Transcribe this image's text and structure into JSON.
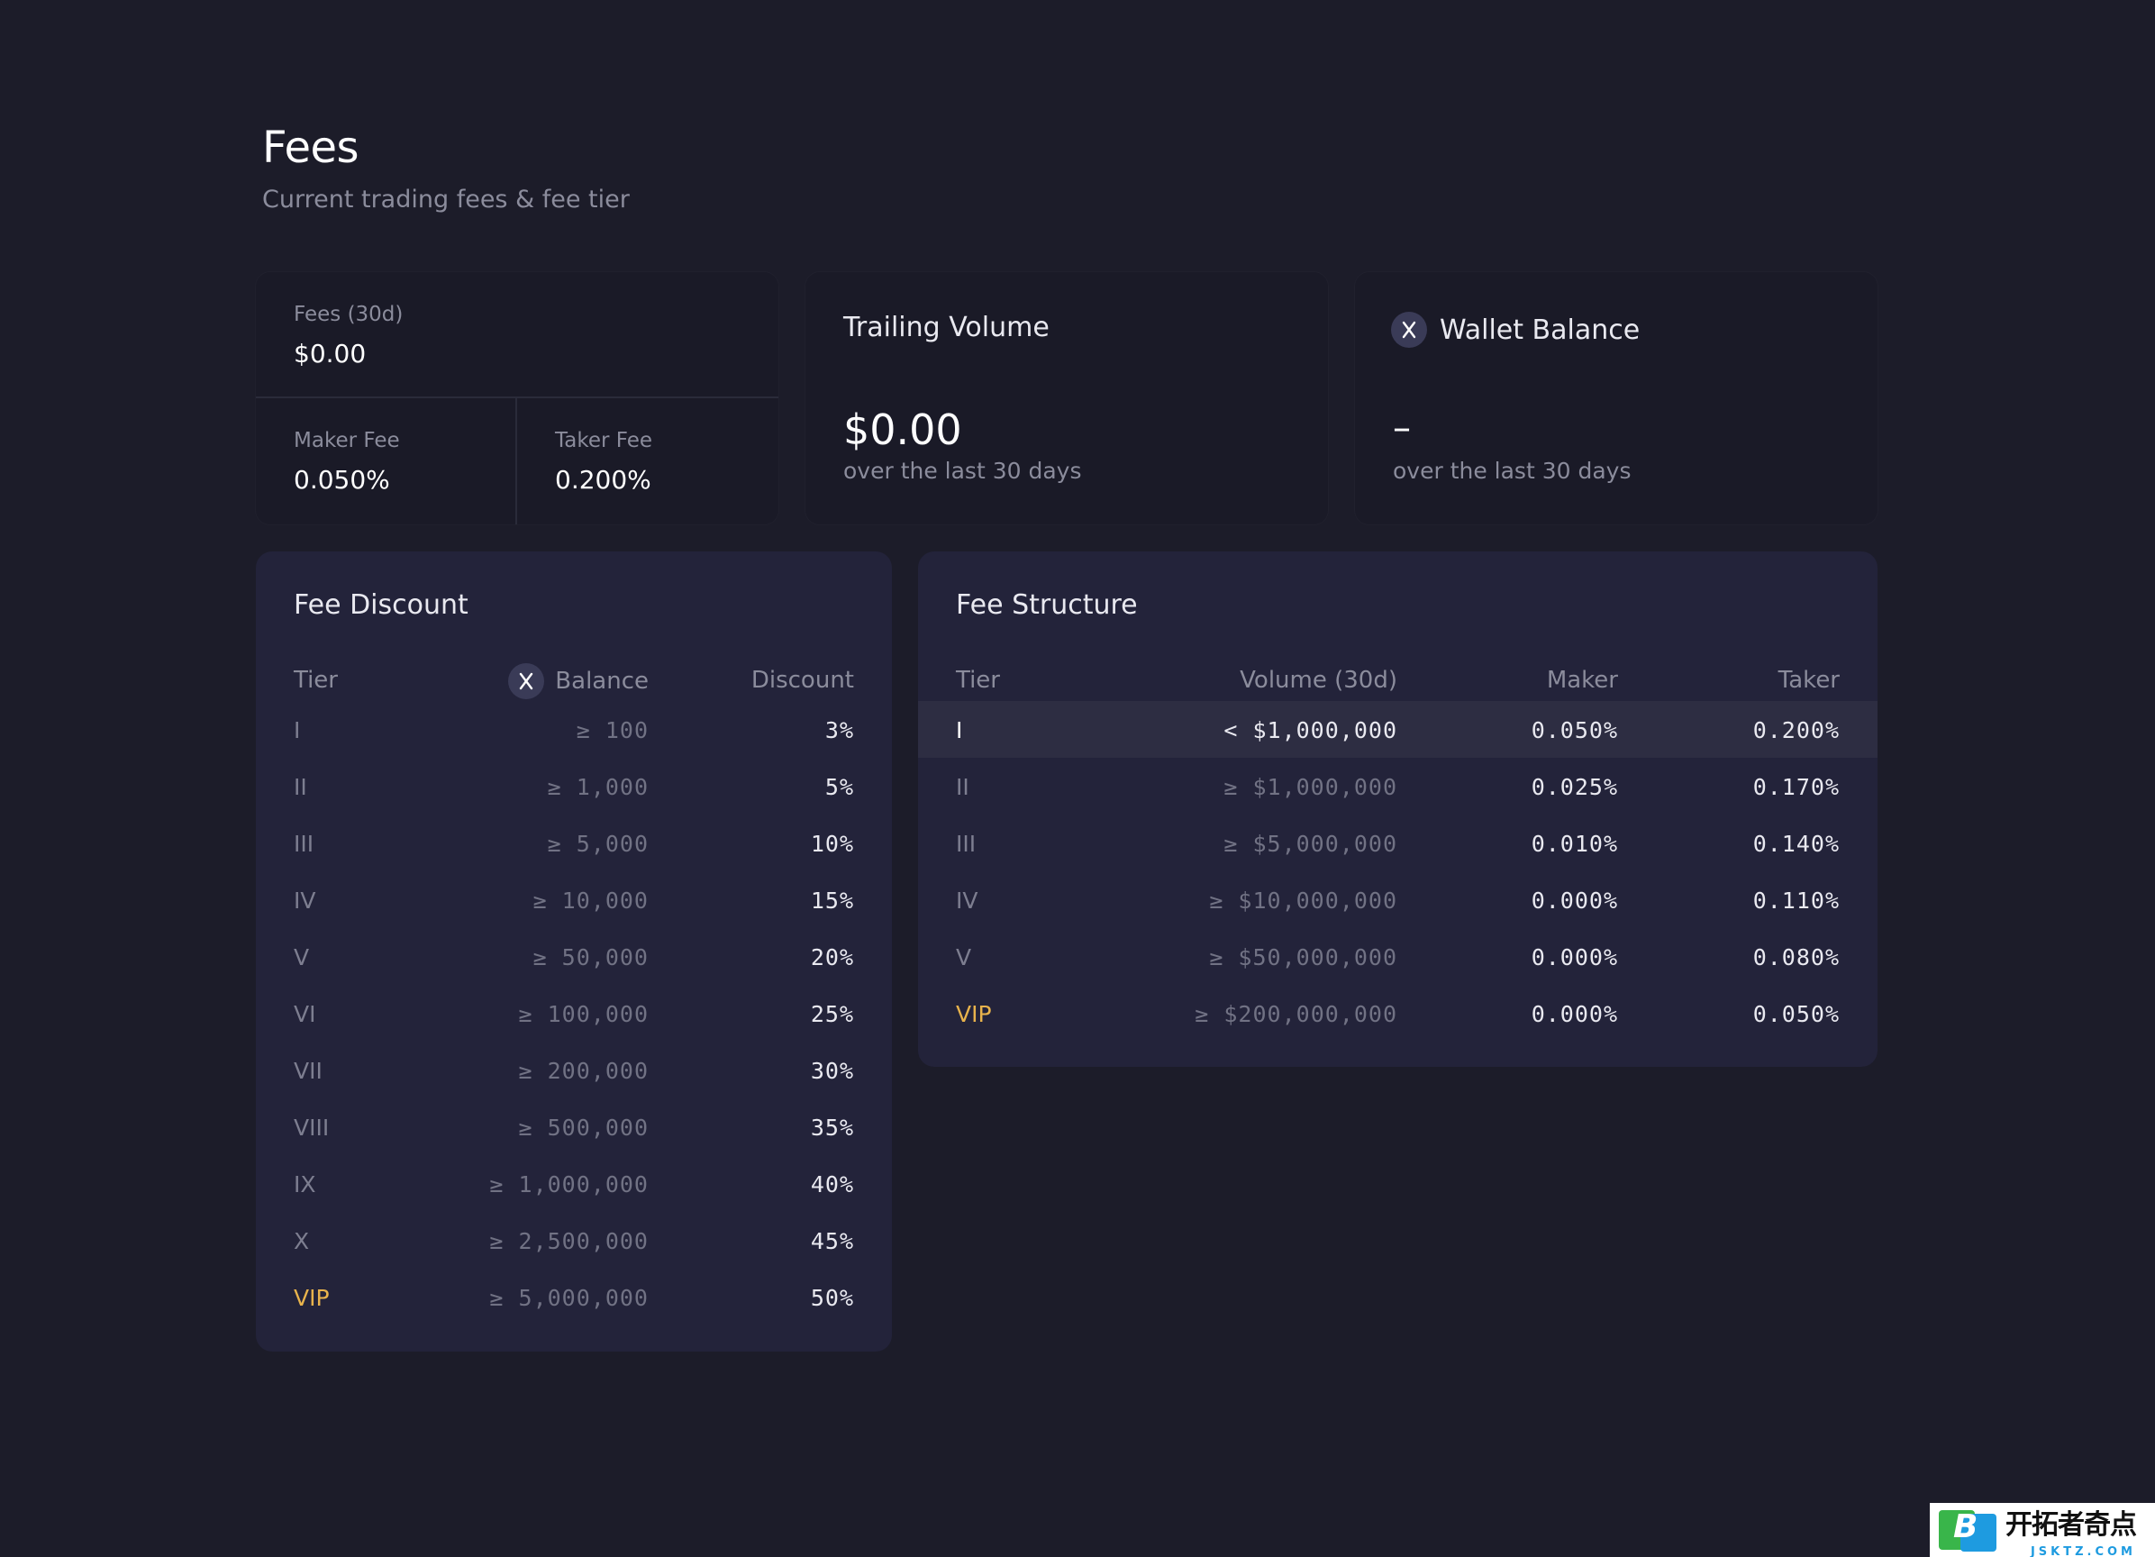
{
  "header": {
    "title": "Fees",
    "subtitle": "Current trading fees & fee tier"
  },
  "fees_card": {
    "fees_label": "Fees (30d)",
    "fees_value": "$0.00",
    "maker_label": "Maker Fee",
    "maker_value": "0.050%",
    "taker_label": "Taker Fee",
    "taker_value": "0.200%"
  },
  "volume_card": {
    "title": "Trailing Volume",
    "value": "$0.00",
    "subtitle": "over the last 30 days"
  },
  "wallet_card": {
    "title": "Wallet Balance",
    "token_icon": "x-token-icon",
    "value": "–",
    "subtitle": "over the last 30 days"
  },
  "fee_discount": {
    "title": "Fee Discount",
    "columns": {
      "tier": "Tier",
      "balance": "Balance",
      "discount": "Discount"
    },
    "rows": [
      {
        "tier": "I",
        "balance": "≥ 100",
        "discount": "3%"
      },
      {
        "tier": "II",
        "balance": "≥ 1,000",
        "discount": "5%"
      },
      {
        "tier": "III",
        "balance": "≥ 5,000",
        "discount": "10%"
      },
      {
        "tier": "IV",
        "balance": "≥ 10,000",
        "discount": "15%"
      },
      {
        "tier": "V",
        "balance": "≥ 50,000",
        "discount": "20%"
      },
      {
        "tier": "VI",
        "balance": "≥ 100,000",
        "discount": "25%"
      },
      {
        "tier": "VII",
        "balance": "≥ 200,000",
        "discount": "30%"
      },
      {
        "tier": "VIII",
        "balance": "≥ 500,000",
        "discount": "35%"
      },
      {
        "tier": "IX",
        "balance": "≥ 1,000,000",
        "discount": "40%"
      },
      {
        "tier": "X",
        "balance": "≥ 2,500,000",
        "discount": "45%"
      },
      {
        "tier": "VIP",
        "balance": "≥ 5,000,000",
        "discount": "50%"
      }
    ]
  },
  "fee_structure": {
    "title": "Fee Structure",
    "columns": {
      "tier": "Tier",
      "volume": "Volume (30d)",
      "maker": "Maker",
      "taker": "Taker"
    },
    "rows": [
      {
        "tier": "I",
        "volume": "< $1,000,000",
        "maker": "0.050%",
        "taker": "0.200%"
      },
      {
        "tier": "II",
        "volume": "≥ $1,000,000",
        "maker": "0.025%",
        "taker": "0.170%"
      },
      {
        "tier": "III",
        "volume": "≥ $5,000,000",
        "maker": "0.010%",
        "taker": "0.140%"
      },
      {
        "tier": "IV",
        "volume": "≥ $10,000,000",
        "maker": "0.000%",
        "taker": "0.110%"
      },
      {
        "tier": "V",
        "volume": "≥ $50,000,000",
        "maker": "0.000%",
        "taker": "0.080%"
      },
      {
        "tier": "VIP",
        "volume": "≥ $200,000,000",
        "maker": "0.000%",
        "taker": "0.050%"
      }
    ]
  },
  "watermark": {
    "cn": "开拓者奇点",
    "en": "JSKTZ.COM"
  },
  "colors": {
    "background": "#1c1c29",
    "card": "#1a1a27",
    "panel": "#23233a",
    "vip": "#e8b34c",
    "highlight_row": "#2d2d42"
  }
}
